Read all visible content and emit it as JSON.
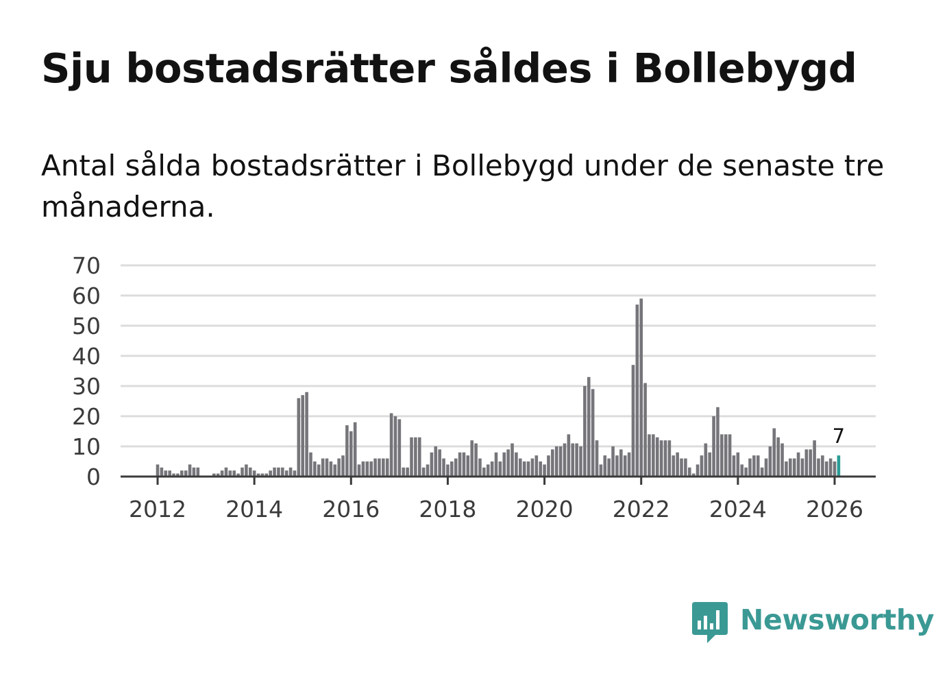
{
  "header": {
    "title": "Sju bostadsrätter såldes i Bollebygd",
    "subtitle": "Antal sålda bostadsrätter i Bollebygd under de senaste tre månaderna."
  },
  "brand": {
    "name": "Newsworthy",
    "icon": "newsworthy-logo-icon",
    "color": "#3b9994"
  },
  "chart_data": {
    "type": "bar",
    "title": "Sju bostadsrätter såldes i Bollebygd",
    "subtitle": "Antal sålda bostadsrätter i Bollebygd under de senaste tre månaderna.",
    "x_start": "2011-01",
    "interval": "month",
    "values": [
      0,
      0,
      0,
      0,
      0,
      0,
      0,
      0,
      0,
      0,
      0,
      0,
      4,
      3,
      2,
      2,
      1,
      1,
      2,
      2,
      4,
      3,
      3,
      0,
      0,
      0,
      1,
      1,
      2,
      3,
      2,
      2,
      1,
      3,
      4,
      3,
      2,
      1,
      1,
      1,
      2,
      3,
      3,
      3,
      2,
      3,
      2,
      26,
      27,
      28,
      8,
      5,
      4,
      6,
      6,
      5,
      4,
      6,
      7,
      17,
      15,
      18,
      4,
      5,
      5,
      5,
      6,
      6,
      6,
      6,
      21,
      20,
      19,
      3,
      3,
      13,
      13,
      13,
      3,
      4,
      8,
      10,
      9,
      6,
      4,
      5,
      6,
      8,
      8,
      7,
      12,
      11,
      6,
      3,
      4,
      5,
      8,
      5,
      8,
      9,
      11,
      8,
      6,
      5,
      5,
      6,
      7,
      5,
      4,
      7,
      9,
      10,
      10,
      11,
      14,
      11,
      11,
      10,
      30,
      33,
      29,
      12,
      4,
      7,
      6,
      10,
      7,
      9,
      7,
      8,
      37,
      57,
      59,
      31,
      14,
      14,
      13,
      12,
      12,
      12,
      7,
      8,
      6,
      6,
      3,
      1,
      4,
      7,
      11,
      8,
      20,
      23,
      14,
      14,
      14,
      7,
      8,
      4,
      3,
      6,
      7,
      7,
      3,
      6,
      10,
      16,
      13,
      11,
      5,
      6,
      6,
      8,
      6,
      9,
      9,
      12,
      6,
      7,
      5,
      6,
      5,
      7
    ],
    "highlight": {
      "label": "7",
      "value": 7,
      "color": "#2a9c95"
    },
    "x_ticks": [
      "2012",
      "2014",
      "2016",
      "2018",
      "2020",
      "2022",
      "2024",
      "2026"
    ],
    "y_ticks": [
      "0",
      "10",
      "20",
      "30",
      "40",
      "50",
      "60",
      "70"
    ],
    "ylim": [
      0,
      70
    ],
    "xlabel": "",
    "ylabel": "",
    "bar_color": "#75757a",
    "grid": true,
    "legend": "none"
  }
}
